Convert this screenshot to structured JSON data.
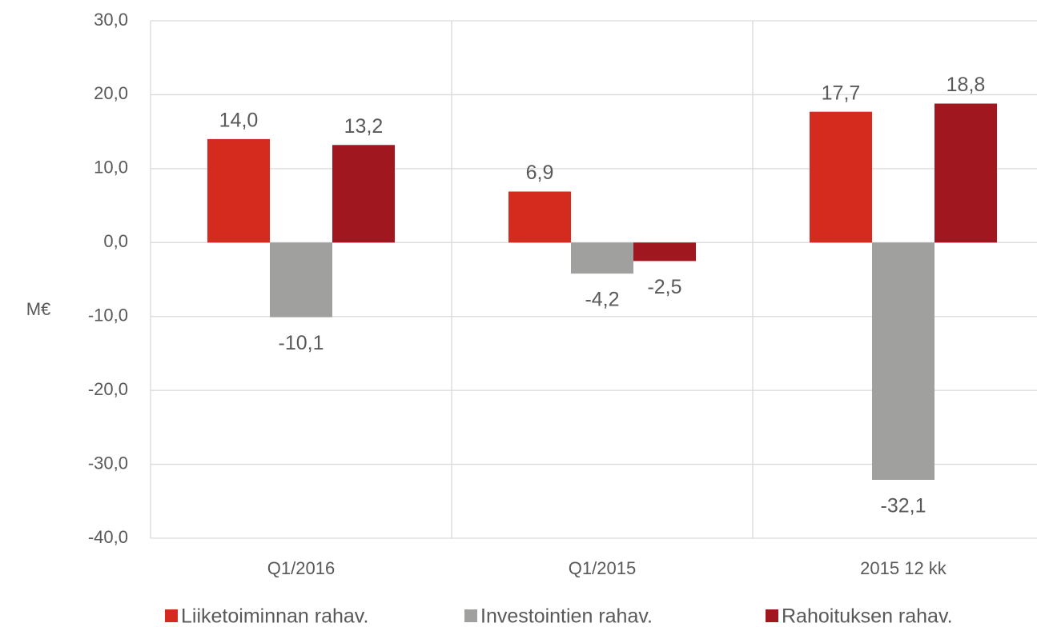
{
  "chart_data": {
    "type": "bar",
    "ylabel": "M€",
    "categories": [
      "Q1/2016",
      "Q1/2015",
      "2015 12 kk"
    ],
    "series": [
      {
        "name": "Liiketoiminnan rahav.",
        "color": "#d52b1e",
        "values": [
          14.0,
          6.9,
          17.7
        ],
        "value_labels": [
          "14,0",
          "6,9",
          "17,7"
        ]
      },
      {
        "name": "Investointien rahav.",
        "color": "#a0a09e",
        "values": [
          -10.1,
          -4.2,
          -32.1
        ],
        "value_labels": [
          "-10,1",
          "-4,2",
          "-32,1"
        ]
      },
      {
        "name": "Rahoituksen rahav.",
        "color": "#a0171f",
        "values": [
          13.2,
          -2.5,
          18.8
        ],
        "value_labels": [
          "13,2",
          "-2,5",
          "18,8"
        ]
      }
    ],
    "ylim": [
      -40,
      30
    ],
    "yticks": [
      {
        "value": -40,
        "label": "-40,0"
      },
      {
        "value": -30,
        "label": "-30,0"
      },
      {
        "value": -20,
        "label": "-20,0"
      },
      {
        "value": -10,
        "label": "-10,0"
      },
      {
        "value": 0,
        "label": "0,0"
      },
      {
        "value": 10,
        "label": "10,0"
      },
      {
        "value": 20,
        "label": "20,0"
      },
      {
        "value": 30,
        "label": "30,0"
      }
    ],
    "grid": true,
    "legend": "bottom"
  }
}
